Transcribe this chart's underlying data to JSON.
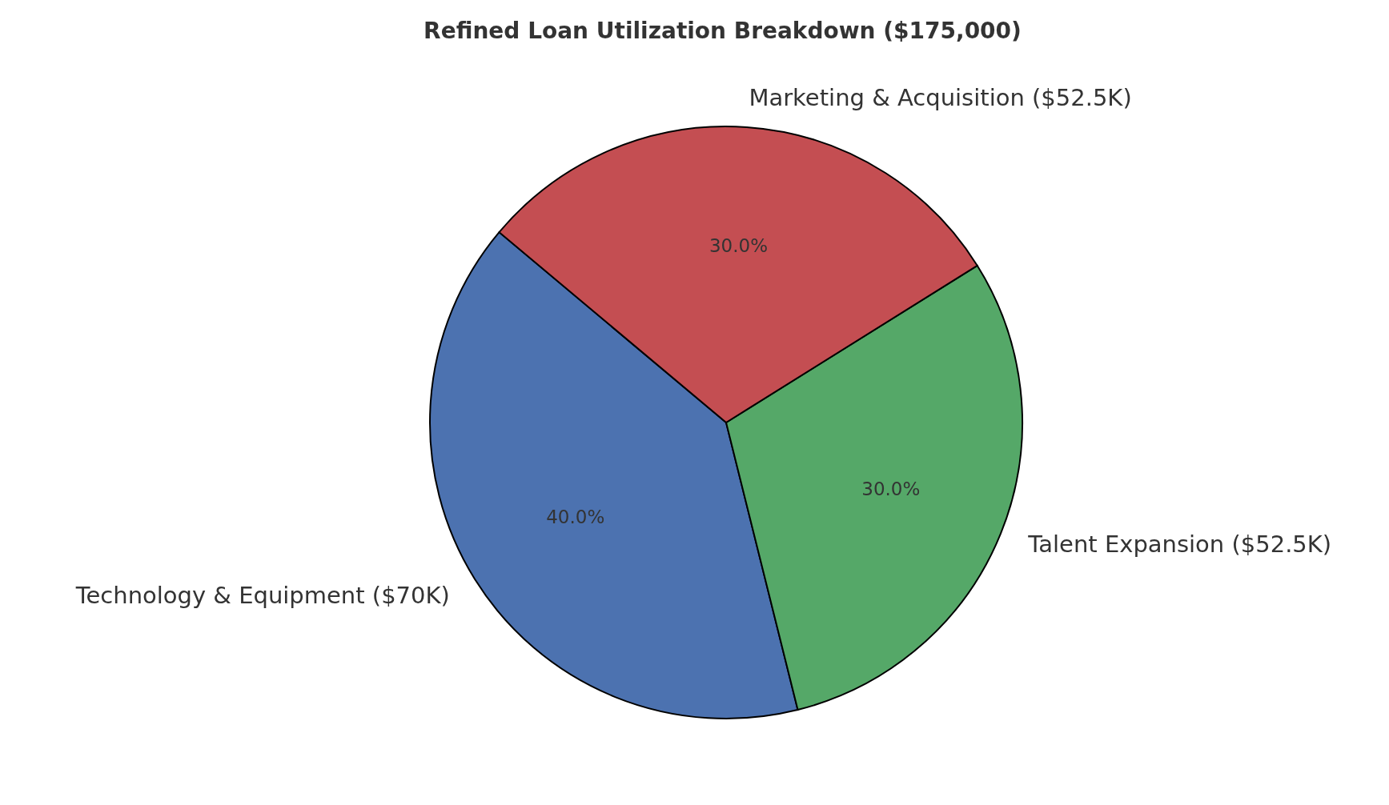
{
  "chart_data": {
    "type": "pie",
    "title": "Refined Loan Utilization Breakdown ($175,000)",
    "categories": [
      "Technology & Equipment ($70K)",
      "Talent Expansion ($52.5K)",
      "Marketing & Acquisition ($52.5K)"
    ],
    "values": [
      40,
      30,
      30
    ],
    "colors": [
      "#4c72b0",
      "#55a868",
      "#c44e52"
    ],
    "value_labels": [
      "40.0%",
      "30.0%",
      "30.0%"
    ],
    "legend": false
  }
}
